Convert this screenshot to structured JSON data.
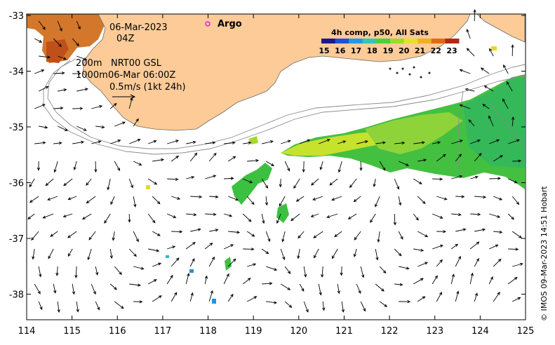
{
  "map": {
    "date": "06-Mar-2023",
    "time": "04Z",
    "argo_label": "Argo",
    "isobaths": {
      "shallow": "200m",
      "deep": "1000m"
    },
    "current_source": "NRT00 GSL",
    "current_time": "06-Mar 06:00Z",
    "scale_arrow_label": "0.5m/s (1kt 24h)",
    "credit": "© IMOS 09-Mar-2023 14:51 Hobart",
    "land_color": "#fccb98",
    "ocean_color": "#ffffff"
  },
  "colorbar": {
    "title": "4h comp, p50, All Sats",
    "ticks": [
      "15",
      "16",
      "17",
      "18",
      "19",
      "20",
      "21",
      "22",
      "23"
    ],
    "colors": [
      "#1a1a8c",
      "#1f4fd6",
      "#1f9be0",
      "#2fc7b6",
      "#4ccf3a",
      "#9bdc2a",
      "#e2e22a",
      "#f0b020",
      "#e06a14",
      "#b02a10"
    ]
  },
  "axes": {
    "x_ticks": [
      "114",
      "115",
      "116",
      "117",
      "118",
      "119",
      "120",
      "121",
      "122",
      "123",
      "124",
      "125"
    ],
    "y_ticks": [
      "-33",
      "-34",
      "-35",
      "-36",
      "-37",
      "-38"
    ]
  }
}
